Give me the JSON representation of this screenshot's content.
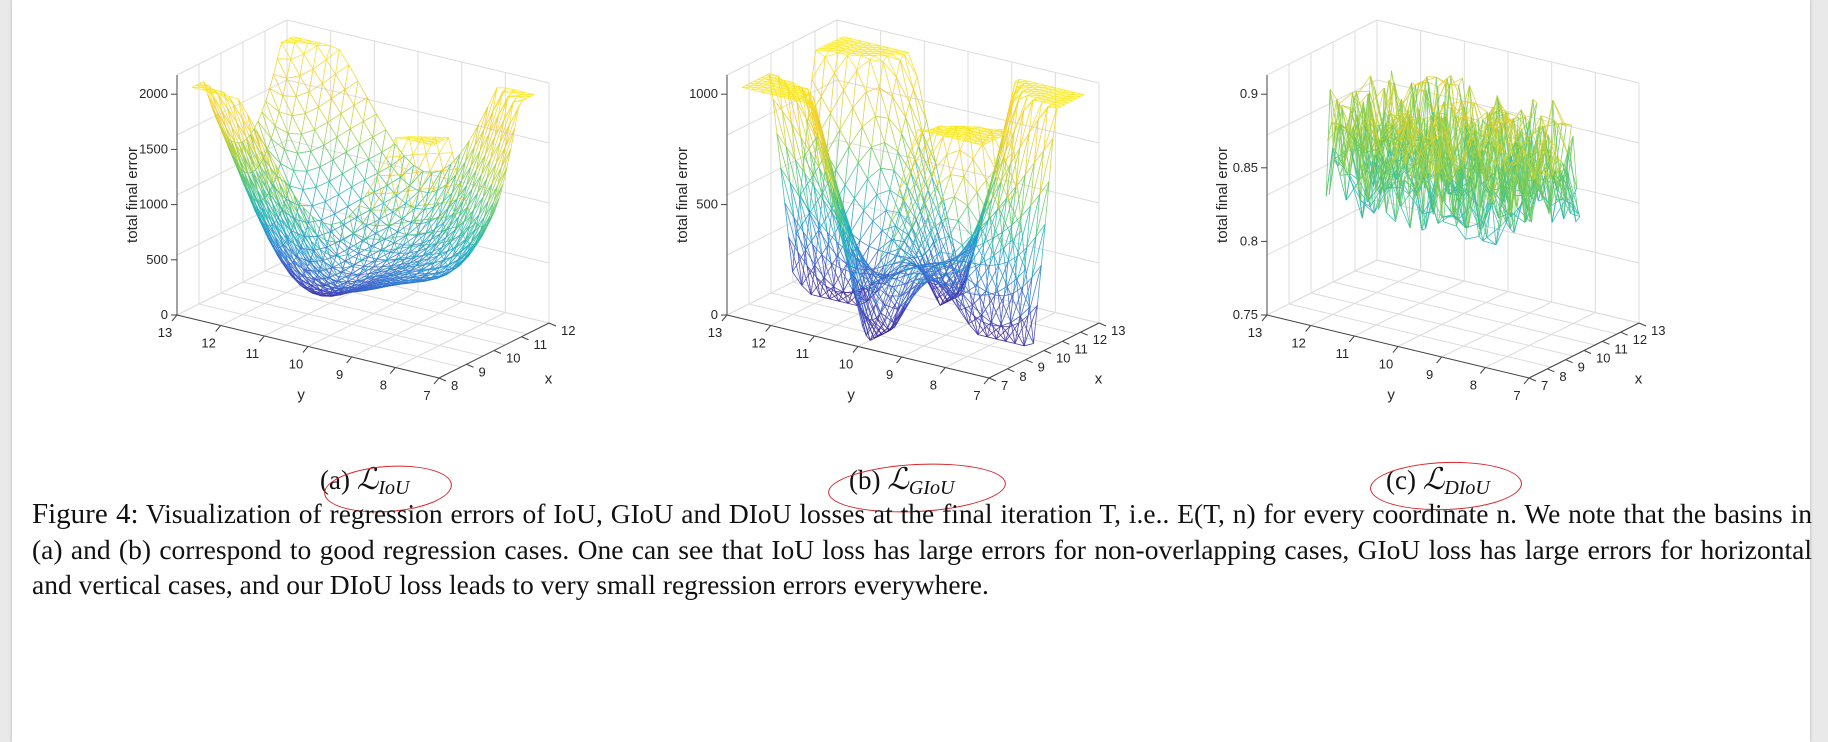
{
  "panels": [
    {
      "id": "a",
      "ylabel_axis": "total final error",
      "z_ticks": [
        "0",
        "500",
        "1000",
        "1500",
        "2000"
      ],
      "y_ticks": [
        "13",
        "12",
        "11",
        "10",
        "9",
        "8",
        "7"
      ],
      "x_ticks": [
        "8",
        "9",
        "10",
        "11",
        "12"
      ],
      "y_label": "y",
      "x_label": "x",
      "subcaption_prefix": "(a) ",
      "subcaption_symbol": "ℒ",
      "subcaption_sub": "IoU"
    },
    {
      "id": "b",
      "ylabel_axis": "total final error",
      "z_ticks": [
        "0",
        "500",
        "1000"
      ],
      "y_ticks": [
        "13",
        "12",
        "11",
        "10",
        "9",
        "8",
        "7"
      ],
      "x_ticks": [
        "7",
        "8",
        "9",
        "10",
        "11",
        "12",
        "13"
      ],
      "y_label": "y",
      "x_label": "x",
      "subcaption_prefix": "(b) ",
      "subcaption_symbol": "ℒ",
      "subcaption_sub": "GIoU"
    },
    {
      "id": "c",
      "ylabel_axis": "total final error",
      "z_ticks": [
        "0.75",
        "0.8",
        "0.85",
        "0.9"
      ],
      "y_ticks": [
        "13",
        "12",
        "11",
        "10",
        "9",
        "8",
        "7"
      ],
      "x_ticks": [
        "7",
        "8",
        "9",
        "10",
        "11",
        "12",
        "13"
      ],
      "y_label": "y",
      "x_label": "x",
      "subcaption_prefix": "(c) ",
      "subcaption_symbol": "ℒ",
      "subcaption_sub": "DIoU"
    }
  ],
  "caption": {
    "label": "Figure 4:",
    "text": "Visualization of regression errors of IoU, GIoU and DIoU losses at the final iteration T, i.e.. E(T, n) for every coordinate n. We note that the basins in (a) and (b) correspond to good regression cases. One can see that IoU loss has large errors for non-overlapping cases, GIoU loss has large errors for horizontal and vertical cases, and our DIoU loss leads to very small regression errors everywhere."
  },
  "colors": {
    "annotation_ellipse": "#d8242a",
    "colormap": [
      "#3b1f8f",
      "#3f51c7",
      "#2a8fd6",
      "#22b7b8",
      "#5cc86a",
      "#c6d335",
      "#f5c92e",
      "#f9e71e"
    ]
  }
}
